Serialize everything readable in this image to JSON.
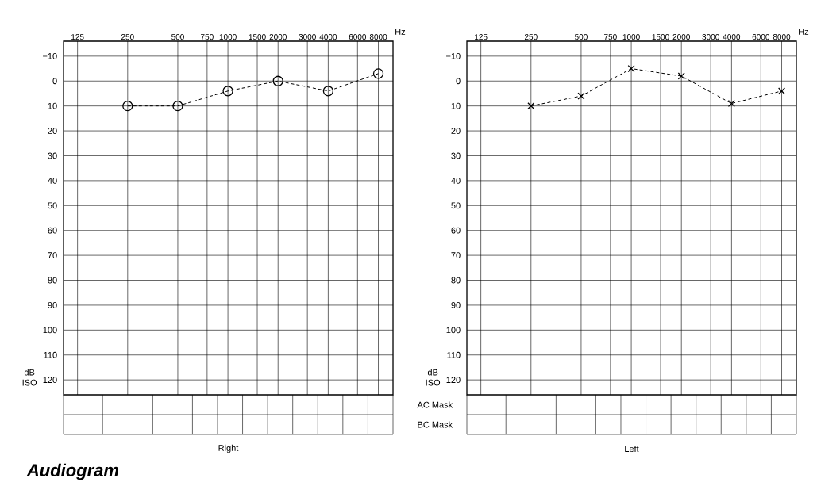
{
  "chart_data": [
    {
      "type": "line",
      "title": "Right",
      "xlabel": "Hz",
      "ylabel": "dB ISO",
      "x": [
        250,
        500,
        1000,
        2000,
        4000,
        8000
      ],
      "series": [
        {
          "color": "#000000",
          "values": [
            10,
            10,
            4,
            0,
            4,
            -3
          ]
        }
      ],
      "log": "x",
      "xlim": [
        103,
        9800
      ],
      "xticks": [
        125,
        250,
        500,
        750,
        1000,
        1500,
        2000,
        3000,
        4000,
        6000,
        8000
      ],
      "ylim": [
        126,
        -16
      ],
      "yticks": [
        {
          "value": -10,
          "label": "−10"
        },
        0,
        10,
        20,
        30,
        40,
        50,
        60,
        70,
        80,
        90,
        100,
        110,
        120
      ],
      "grid": true,
      "marker": "circle",
      "line_style": "dashed",
      "annotations": [
        "Audiogram"
      ]
    },
    {
      "type": "line",
      "title": "Left",
      "xlabel": "Hz",
      "ylabel": "dB ISO",
      "x": [
        250,
        500,
        1000,
        2000,
        4000,
        8000
      ],
      "series": [
        {
          "color": "#000000",
          "values": [
            10,
            6,
            -5,
            -2,
            9,
            4
          ]
        }
      ],
      "log": "x",
      "xlim": [
        103,
        9800
      ],
      "xticks": [
        125,
        250,
        500,
        750,
        1000,
        1500,
        2000,
        3000,
        4000,
        6000,
        8000
      ],
      "ylim": [
        126,
        -16
      ],
      "yticks": [
        {
          "value": -10,
          "label": "−10"
        },
        0,
        10,
        20,
        30,
        40,
        50,
        60,
        70,
        80,
        90,
        100,
        110,
        120
      ],
      "grid": true,
      "marker": "cross",
      "line_style": "dashed",
      "annotations": [
        "AC Mask",
        "BC Mask"
      ]
    }
  ]
}
